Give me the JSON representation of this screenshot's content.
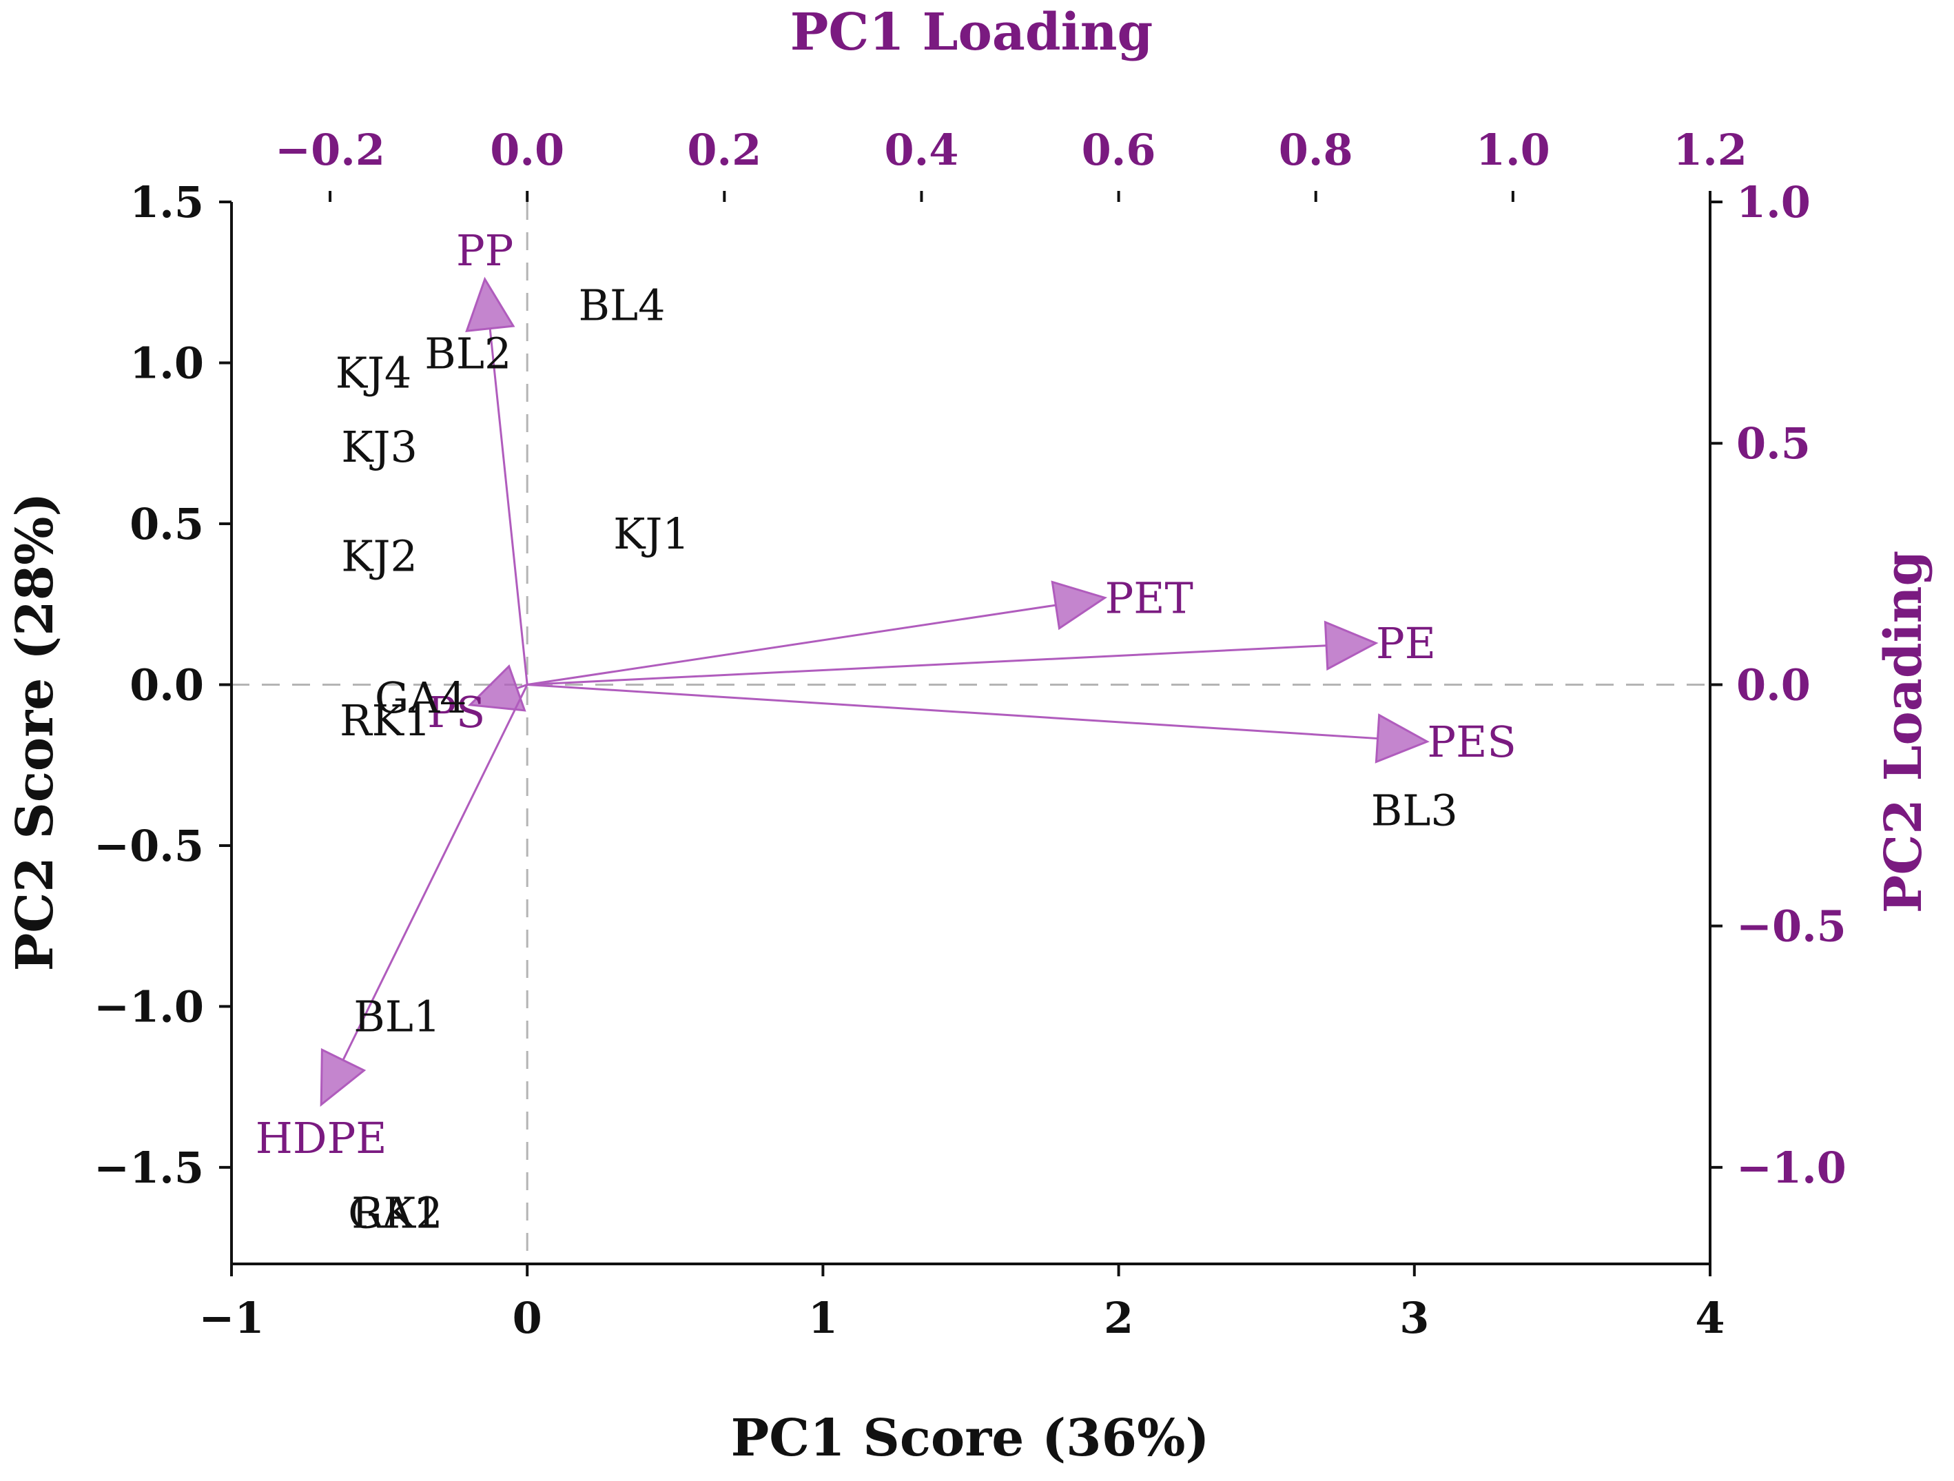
{
  "chart_data": {
    "type": "scatter",
    "subtype": "pca-biplot",
    "title_top": "PC1 Loading",
    "xlabel": "PC1 Score (36%)",
    "ylabel": "PC2 Score (28%)",
    "ylabel_right": "PC2 Loading",
    "xlim": [
      -1,
      4
    ],
    "ylim": [
      -1.8,
      1.5
    ],
    "xticks": [
      {
        "v": -1,
        "label": "−1"
      },
      {
        "v": 0,
        "label": "0"
      },
      {
        "v": 1,
        "label": "1"
      },
      {
        "v": 2,
        "label": "2"
      },
      {
        "v": 3,
        "label": "3"
      },
      {
        "v": 4,
        "label": "4"
      }
    ],
    "yticks": [
      {
        "v": 1.5,
        "label": "1.5"
      },
      {
        "v": 1.0,
        "label": "1.0"
      },
      {
        "v": 0.5,
        "label": "0.5"
      },
      {
        "v": 0.0,
        "label": "0.0"
      },
      {
        "v": -0.5,
        "label": "−0.5"
      },
      {
        "v": -1.0,
        "label": "−1.0"
      },
      {
        "v": -1.5,
        "label": "−1.5"
      }
    ],
    "loading_xlim": [
      -0.3,
      1.2
    ],
    "loading_ylim": [
      -1.2,
      1.0
    ],
    "loading_xticks": [
      {
        "v": -0.2,
        "label": "−0.2"
      },
      {
        "v": 0.0,
        "label": "0.0"
      },
      {
        "v": 0.2,
        "label": "0.2"
      },
      {
        "v": 0.4,
        "label": "0.4"
      },
      {
        "v": 0.6,
        "label": "0.6"
      },
      {
        "v": 0.8,
        "label": "0.8"
      },
      {
        "v": 1.0,
        "label": "1.0"
      },
      {
        "v": 1.2,
        "label": "1.2"
      }
    ],
    "loading_yticks": [
      {
        "v": 1.0,
        "label": "1.0"
      },
      {
        "v": 0.5,
        "label": "0.5"
      },
      {
        "v": 0.0,
        "label": "0.0"
      },
      {
        "v": -0.5,
        "label": "−0.5"
      },
      {
        "v": -1.0,
        "label": "−1.0"
      }
    ],
    "scores": [
      {
        "label": "BL4",
        "x": 0.32,
        "y": 1.18
      },
      {
        "label": "BL2",
        "x": -0.2,
        "y": 1.03
      },
      {
        "label": "KJ4",
        "x": -0.52,
        "y": 0.97
      },
      {
        "label": "KJ3",
        "x": -0.5,
        "y": 0.74
      },
      {
        "label": "KJ1",
        "x": 0.42,
        "y": 0.47
      },
      {
        "label": "KJ2",
        "x": -0.5,
        "y": 0.4
      },
      {
        "label": "GA4",
        "x": -0.36,
        "y": -0.04
      },
      {
        "label": "RK1",
        "x": -0.48,
        "y": -0.11
      },
      {
        "label": "BL3",
        "x": 3.0,
        "y": -0.39
      },
      {
        "label": "BL1",
        "x": -0.44,
        "y": -1.03
      },
      {
        "label": "GA1",
        "x": -0.45,
        "y": -1.64
      },
      {
        "label": "RK2",
        "x": -0.44,
        "y": -1.64
      }
    ],
    "loadings": [
      {
        "label": "PP",
        "x": -0.043,
        "y": 0.84
      },
      {
        "label": "PS",
        "x": -0.058,
        "y": -0.042
      },
      {
        "label": "HDPE",
        "x": -0.209,
        "y": -0.87
      },
      {
        "label": "PET",
        "x": 0.586,
        "y": 0.18
      },
      {
        "label": "PE",
        "x": 0.861,
        "y": 0.086
      },
      {
        "label": "PES",
        "x": 0.913,
        "y": -0.118
      }
    ],
    "colors": {
      "axis": "#111111",
      "loading": "#7a1a80",
      "arrow": "#b05cbd",
      "guide": "#b4b4b4"
    }
  }
}
